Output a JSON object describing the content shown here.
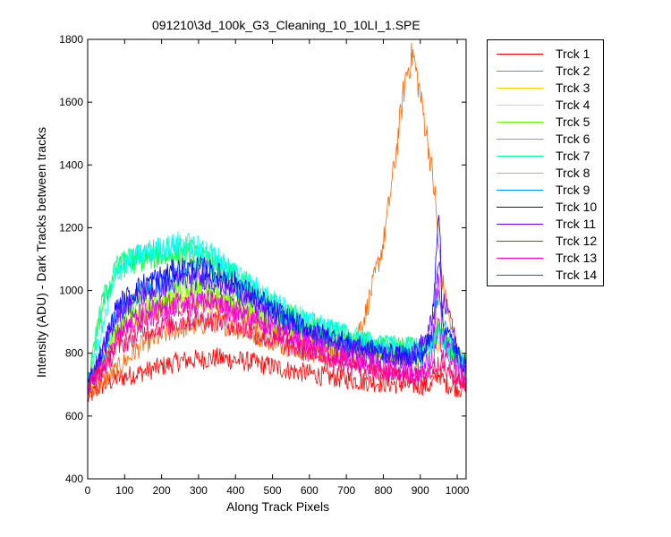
{
  "chart_data": {
    "type": "line",
    "title": "091210\\3d_100k_G3_Cleaning_10_10LI_1.SPE",
    "xlabel": "Along Track Pixels",
    "ylabel": "Intensity (ADU) - Dark Tracks between tracks",
    "xlim": [
      0,
      1024
    ],
    "ylim": [
      400,
      1800
    ],
    "xticks": [
      "0",
      "100",
      "200",
      "300",
      "400",
      "500",
      "600",
      "700",
      "800",
      "900",
      "1000"
    ],
    "yticks": [
      "400",
      "600",
      "800",
      "1000",
      "1200",
      "1400",
      "1600",
      "1800"
    ],
    "grid": false,
    "legend_position": "outside-right",
    "series": [
      {
        "name": "Trck 1",
        "color": "#ff0000",
        "points": [
          [
            0,
            655
          ],
          [
            30,
            690
          ],
          [
            80,
            720
          ],
          [
            150,
            740
          ],
          [
            250,
            775
          ],
          [
            350,
            785
          ],
          [
            450,
            770
          ],
          [
            550,
            745
          ],
          [
            650,
            725
          ],
          [
            750,
            710
          ],
          [
            850,
            700
          ],
          [
            930,
            695
          ],
          [
            950,
            740
          ],
          [
            965,
            705
          ],
          [
            1000,
            690
          ],
          [
            1024,
            690
          ]
        ]
      },
      {
        "name": "Trck 2",
        "color": "#ff6600",
        "points": [
          [
            0,
            665
          ],
          [
            30,
            700
          ],
          [
            80,
            750
          ],
          [
            150,
            830
          ],
          [
            250,
            880
          ],
          [
            350,
            900
          ],
          [
            450,
            860
          ],
          [
            550,
            820
          ],
          [
            650,
            790
          ],
          [
            700,
            790
          ],
          [
            750,
            920
          ],
          [
            800,
            1150
          ],
          [
            830,
            1400
          ],
          [
            860,
            1680
          ],
          [
            880,
            1755
          ],
          [
            900,
            1620
          ],
          [
            920,
            1480
          ],
          [
            940,
            1300
          ],
          [
            950,
            1130
          ],
          [
            965,
            990
          ],
          [
            990,
            840
          ],
          [
            1010,
            760
          ],
          [
            1024,
            700
          ]
        ]
      },
      {
        "name": "Trck 3",
        "color": "#ffcc00",
        "points": [
          [
            0,
            690
          ],
          [
            40,
            760
          ],
          [
            80,
            850
          ],
          [
            150,
            920
          ],
          [
            250,
            960
          ],
          [
            320,
            970
          ],
          [
            400,
            940
          ],
          [
            500,
            880
          ],
          [
            600,
            840
          ],
          [
            700,
            810
          ],
          [
            800,
            790
          ],
          [
            900,
            790
          ],
          [
            930,
            860
          ],
          [
            950,
            820
          ],
          [
            970,
            860
          ],
          [
            1000,
            780
          ],
          [
            1024,
            750
          ]
        ]
      },
      {
        "name": "Trck 4",
        "color": "#ccff00",
        "points": [
          [
            0,
            690
          ],
          [
            40,
            770
          ],
          [
            80,
            870
          ],
          [
            150,
            940
          ],
          [
            250,
            980
          ],
          [
            320,
            990
          ],
          [
            400,
            955
          ],
          [
            500,
            890
          ],
          [
            600,
            845
          ],
          [
            700,
            815
          ],
          [
            800,
            795
          ],
          [
            900,
            790
          ],
          [
            930,
            840
          ],
          [
            950,
            900
          ],
          [
            970,
            830
          ],
          [
            1000,
            780
          ],
          [
            1024,
            760
          ]
        ]
      },
      {
        "name": "Trck 5",
        "color": "#66ff00",
        "points": [
          [
            0,
            690
          ],
          [
            40,
            780
          ],
          [
            80,
            890
          ],
          [
            150,
            960
          ],
          [
            250,
            1000
          ],
          [
            320,
            1010
          ],
          [
            400,
            975
          ],
          [
            500,
            905
          ],
          [
            600,
            860
          ],
          [
            700,
            830
          ],
          [
            800,
            805
          ],
          [
            900,
            800
          ],
          [
            930,
            830
          ],
          [
            950,
            880
          ],
          [
            970,
            830
          ],
          [
            1000,
            790
          ],
          [
            1024,
            760
          ]
        ]
      },
      {
        "name": "Trck 6",
        "color": "#00ff33",
        "points": [
          [
            0,
            700
          ],
          [
            40,
            950
          ],
          [
            80,
            1070
          ],
          [
            150,
            1100
          ],
          [
            250,
            1120
          ],
          [
            320,
            1100
          ],
          [
            400,
            1030
          ],
          [
            500,
            950
          ],
          [
            600,
            890
          ],
          [
            700,
            850
          ],
          [
            800,
            820
          ],
          [
            900,
            820
          ],
          [
            930,
            840
          ],
          [
            950,
            880
          ],
          [
            970,
            830
          ],
          [
            1000,
            790
          ],
          [
            1024,
            760
          ]
        ]
      },
      {
        "name": "Trck 7",
        "color": "#00ff99",
        "points": [
          [
            0,
            705
          ],
          [
            40,
            970
          ],
          [
            80,
            1080
          ],
          [
            150,
            1120
          ],
          [
            250,
            1140
          ],
          [
            320,
            1120
          ],
          [
            400,
            1050
          ],
          [
            500,
            960
          ],
          [
            600,
            895
          ],
          [
            700,
            855
          ],
          [
            800,
            825
          ],
          [
            900,
            820
          ],
          [
            930,
            835
          ],
          [
            950,
            870
          ],
          [
            970,
            825
          ],
          [
            1000,
            790
          ],
          [
            1024,
            760
          ]
        ]
      },
      {
        "name": "Trck 8",
        "color": "#00ffff",
        "points": [
          [
            0,
            700
          ],
          [
            40,
            880
          ],
          [
            80,
            1060
          ],
          [
            150,
            1120
          ],
          [
            250,
            1150
          ],
          [
            320,
            1130
          ],
          [
            400,
            1060
          ],
          [
            500,
            970
          ],
          [
            600,
            900
          ],
          [
            700,
            860
          ],
          [
            800,
            825
          ],
          [
            900,
            815
          ],
          [
            930,
            830
          ],
          [
            950,
            860
          ],
          [
            970,
            820
          ],
          [
            1000,
            790
          ],
          [
            1024,
            760
          ]
        ]
      },
      {
        "name": "Trck 9",
        "color": "#0099ff",
        "points": [
          [
            0,
            700
          ],
          [
            40,
            800
          ],
          [
            80,
            930
          ],
          [
            150,
            1000
          ],
          [
            250,
            1050
          ],
          [
            320,
            1060
          ],
          [
            400,
            1020
          ],
          [
            500,
            930
          ],
          [
            600,
            870
          ],
          [
            700,
            830
          ],
          [
            800,
            800
          ],
          [
            900,
            790
          ],
          [
            930,
            830
          ],
          [
            950,
            1000
          ],
          [
            970,
            860
          ],
          [
            1000,
            800
          ],
          [
            1024,
            760
          ]
        ]
      },
      {
        "name": "Trck 10",
        "color": "#0000ff",
        "points": [
          [
            0,
            700
          ],
          [
            40,
            810
          ],
          [
            80,
            950
          ],
          [
            150,
            1020
          ],
          [
            250,
            1070
          ],
          [
            320,
            1070
          ],
          [
            400,
            1025
          ],
          [
            500,
            940
          ],
          [
            600,
            875
          ],
          [
            700,
            835
          ],
          [
            800,
            800
          ],
          [
            900,
            785
          ],
          [
            930,
            850
          ],
          [
            950,
            1280
          ],
          [
            960,
            900
          ],
          [
            1000,
            800
          ],
          [
            1024,
            760
          ]
        ]
      },
      {
        "name": "Trck 11",
        "color": "#6600ff",
        "points": [
          [
            0,
            700
          ],
          [
            40,
            800
          ],
          [
            80,
            930
          ],
          [
            150,
            990
          ],
          [
            250,
            1030
          ],
          [
            320,
            1040
          ],
          [
            400,
            1000
          ],
          [
            500,
            915
          ],
          [
            600,
            860
          ],
          [
            700,
            820
          ],
          [
            800,
            790
          ],
          [
            870,
            790
          ],
          [
            920,
            850
          ],
          [
            940,
            960
          ],
          [
            950,
            1100
          ],
          [
            960,
            960
          ],
          [
            980,
            930
          ],
          [
            1000,
            800
          ],
          [
            1024,
            740
          ]
        ]
      },
      {
        "name": "Trck 12",
        "color": "#cc00ff",
        "points": [
          [
            0,
            690
          ],
          [
            40,
            760
          ],
          [
            80,
            870
          ],
          [
            150,
            930
          ],
          [
            250,
            960
          ],
          [
            320,
            970
          ],
          [
            400,
            940
          ],
          [
            500,
            880
          ],
          [
            600,
            830
          ],
          [
            700,
            790
          ],
          [
            800,
            760
          ],
          [
            900,
            740
          ],
          [
            930,
            790
          ],
          [
            950,
            1050
          ],
          [
            960,
            840
          ],
          [
            1000,
            760
          ],
          [
            1024,
            720
          ]
        ]
      },
      {
        "name": "Trck 13",
        "color": "#ff00cc",
        "points": [
          [
            0,
            690
          ],
          [
            40,
            750
          ],
          [
            80,
            850
          ],
          [
            150,
            910
          ],
          [
            250,
            950
          ],
          [
            320,
            960
          ],
          [
            400,
            930
          ],
          [
            500,
            870
          ],
          [
            600,
            820
          ],
          [
            700,
            785
          ],
          [
            800,
            750
          ],
          [
            900,
            730
          ],
          [
            930,
            760
          ],
          [
            950,
            900
          ],
          [
            960,
            790
          ],
          [
            1000,
            740
          ],
          [
            1024,
            710
          ]
        ]
      },
      {
        "name": "Trck 14",
        "color": "#ff0066",
        "points": [
          [
            0,
            690
          ],
          [
            40,
            745
          ],
          [
            80,
            820
          ],
          [
            150,
            870
          ],
          [
            250,
            900
          ],
          [
            320,
            910
          ],
          [
            400,
            890
          ],
          [
            500,
            840
          ],
          [
            600,
            800
          ],
          [
            700,
            765
          ],
          [
            800,
            735
          ],
          [
            900,
            720
          ],
          [
            930,
            740
          ],
          [
            950,
            780
          ],
          [
            970,
            740
          ],
          [
            1000,
            720
          ],
          [
            1024,
            700
          ]
        ]
      }
    ]
  }
}
